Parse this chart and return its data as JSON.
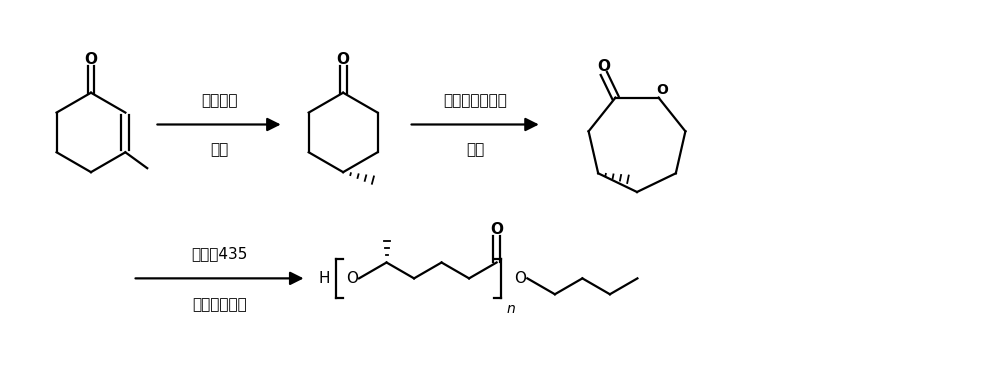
{
  "bg_color": "#ffffff",
  "text_color": "#000000",
  "arrow_label1_line1": "烯还原酶",
  "arrow_label1_line2": "氧气",
  "arrow_label2_line1": "环己酮单加氧酶",
  "arrow_label2_line2": "氧气",
  "arrow_label3_line1": "诺维信435",
  "arrow_label3_line2": "甲苯、正丁醇",
  "font_size_label": 11,
  "font_size_atom": 11,
  "lw": 1.6
}
